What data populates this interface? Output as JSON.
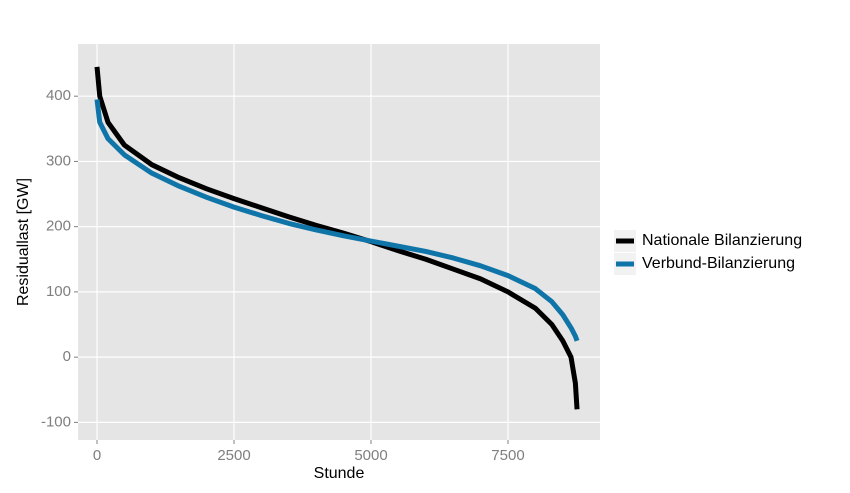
{
  "chart_data": {
    "type": "line",
    "x_label": "Stunde",
    "y_label": "Residuallast [GW]",
    "x": [
      0,
      50,
      200,
      500,
      1000,
      1500,
      2000,
      2500,
      3000,
      3500,
      4000,
      4500,
      5000,
      5500,
      6000,
      6500,
      7000,
      7500,
      8000,
      8300,
      8500,
      8650,
      8730,
      8760
    ],
    "series": [
      {
        "name": "Nationale Bilanzierung",
        "color": "#000000",
        "values": [
          445,
          400,
          360,
          325,
          295,
          275,
          258,
          243,
          229,
          215,
          202,
          190,
          177,
          163,
          150,
          135,
          120,
          100,
          75,
          50,
          25,
          0,
          -40,
          -80
        ]
      },
      {
        "name": "Verbund-Bilanzierung",
        "color": "#0f74a8",
        "values": [
          395,
          360,
          335,
          310,
          282,
          262,
          245,
          230,
          217,
          205,
          195,
          186,
          178,
          170,
          162,
          152,
          140,
          125,
          105,
          85,
          65,
          45,
          32,
          25
        ]
      }
    ],
    "xlim": [
      -347,
      9179
    ],
    "ylim": [
      -127,
      480
    ],
    "xticks": [
      0,
      2500,
      5000,
      7500
    ],
    "yticks": [
      -100,
      0,
      100,
      200,
      300,
      400
    ],
    "grid": true,
    "legend": "right"
  }
}
